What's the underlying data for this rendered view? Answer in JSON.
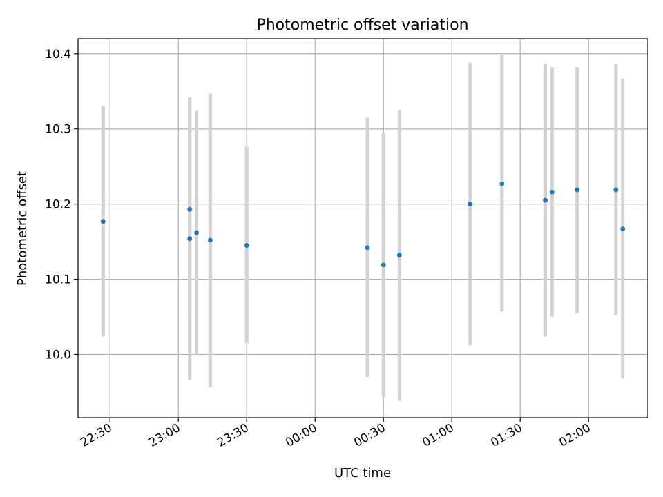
{
  "chart_data": {
    "type": "scatter",
    "title": "Photometric offset variation",
    "xlabel": "UTC time",
    "ylabel": "Photometric offset",
    "grid": true,
    "x_axis": {
      "units": "UTC time (minutes after 22:00)",
      "range_minutes": [
        16,
        266
      ],
      "ticks": [
        {
          "label": "22:30",
          "minutes": 30
        },
        {
          "label": "23:00",
          "minutes": 60
        },
        {
          "label": "23:30",
          "minutes": 90
        },
        {
          "label": "00:00",
          "minutes": 120
        },
        {
          "label": "00:30",
          "minutes": 150
        },
        {
          "label": "01:00",
          "minutes": 180
        },
        {
          "label": "01:30",
          "minutes": 210
        },
        {
          "label": "02:00",
          "minutes": 240
        }
      ]
    },
    "y_axis": {
      "range": [
        9.916,
        10.42
      ],
      "ticks": [
        {
          "label": "10.0",
          "value": 10.0
        },
        {
          "label": "10.1",
          "value": 10.1
        },
        {
          "label": "10.2",
          "value": 10.2
        },
        {
          "label": "10.3",
          "value": 10.3
        },
        {
          "label": "10.4",
          "value": 10.4
        }
      ]
    },
    "series": [
      {
        "color": "#1f77b4",
        "errorbar_color": "#d3d3d3",
        "points": [
          {
            "time": "22:27",
            "y": 10.177,
            "ylo": 10.024,
            "yhi": 10.331
          },
          {
            "time": "23:05",
            "y": 10.193,
            "ylo": 10.049,
            "yhi": 10.339
          },
          {
            "time": "23:05",
            "y": 10.154,
            "ylo": 9.966,
            "yhi": 10.342
          },
          {
            "time": "23:08",
            "y": 10.162,
            "ylo": 10.0,
            "yhi": 10.324
          },
          {
            "time": "23:14",
            "y": 10.152,
            "ylo": 9.957,
            "yhi": 10.347
          },
          {
            "time": "23:30",
            "y": 10.145,
            "ylo": 10.015,
            "yhi": 10.276
          },
          {
            "time": "00:23",
            "y": 10.142,
            "ylo": 9.97,
            "yhi": 10.315
          },
          {
            "time": "00:30",
            "y": 10.119,
            "ylo": 9.944,
            "yhi": 10.295
          },
          {
            "time": "00:37",
            "y": 10.132,
            "ylo": 9.938,
            "yhi": 10.325
          },
          {
            "time": "01:08",
            "y": 10.2,
            "ylo": 10.012,
            "yhi": 10.388
          },
          {
            "time": "01:22",
            "y": 10.227,
            "ylo": 10.057,
            "yhi": 10.398
          },
          {
            "time": "01:41",
            "y": 10.205,
            "ylo": 10.024,
            "yhi": 10.387
          },
          {
            "time": "01:44",
            "y": 10.216,
            "ylo": 10.05,
            "yhi": 10.382
          },
          {
            "time": "01:55",
            "y": 10.219,
            "ylo": 10.055,
            "yhi": 10.382
          },
          {
            "time": "02:12",
            "y": 10.219,
            "ylo": 10.052,
            "yhi": 10.386
          },
          {
            "time": "02:15",
            "y": 10.167,
            "ylo": 9.968,
            "yhi": 10.367
          }
        ]
      }
    ]
  }
}
